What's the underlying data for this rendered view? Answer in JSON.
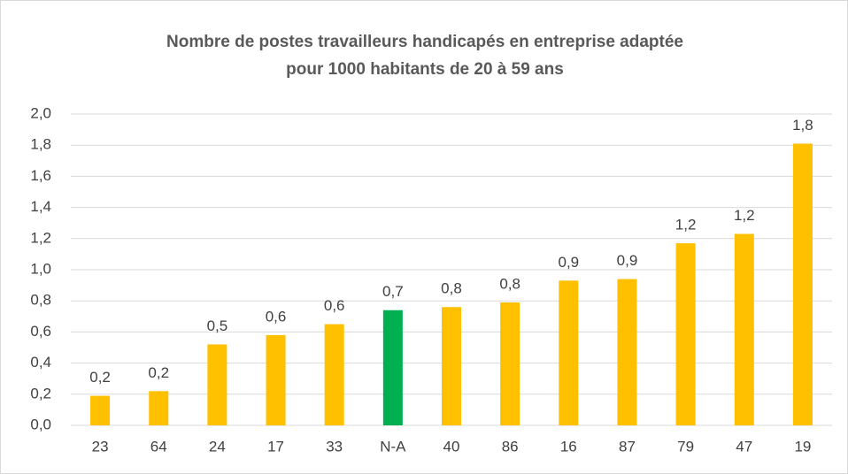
{
  "chart_data": {
    "type": "bar",
    "title": [
      "Nombre de postes travailleurs handicapés en entreprise adaptée",
      "pour 1000 habitants de 20 à 59 ans"
    ],
    "categories": [
      "23",
      "64",
      "24",
      "17",
      "33",
      "N-A",
      "40",
      "86",
      "16",
      "87",
      "79",
      "47",
      "19"
    ],
    "values": [
      0.19,
      0.22,
      0.52,
      0.58,
      0.65,
      0.74,
      0.76,
      0.79,
      0.93,
      0.94,
      1.17,
      1.23,
      1.81
    ],
    "value_labels": [
      "0,2",
      "0,2",
      "0,5",
      "0,6",
      "0,6",
      "0,7",
      "0,8",
      "0,8",
      "0,9",
      "0,9",
      "1,2",
      "1,2",
      "1,8"
    ],
    "colors": [
      "#ffc000",
      "#ffc000",
      "#ffc000",
      "#ffc000",
      "#ffc000",
      "#00b050",
      "#ffc000",
      "#ffc000",
      "#ffc000",
      "#ffc000",
      "#ffc000",
      "#ffc000",
      "#ffc000"
    ],
    "ylim": [
      0,
      2
    ],
    "yticks": [
      {
        "value": 0,
        "label": "0,0"
      },
      {
        "value": 0.2,
        "label": "0,2"
      },
      {
        "value": 0.4,
        "label": "0,4"
      },
      {
        "value": 0.6,
        "label": "0,6"
      },
      {
        "value": 0.8,
        "label": "0,8"
      },
      {
        "value": 1,
        "label": "1,0"
      },
      {
        "value": 1.2,
        "label": "1,2"
      },
      {
        "value": 1.4,
        "label": "1,4"
      },
      {
        "value": 1.6,
        "label": "1,6"
      },
      {
        "value": 1.8,
        "label": "1,8"
      },
      {
        "value": 2,
        "label": "2,0"
      }
    ],
    "grid": true
  }
}
